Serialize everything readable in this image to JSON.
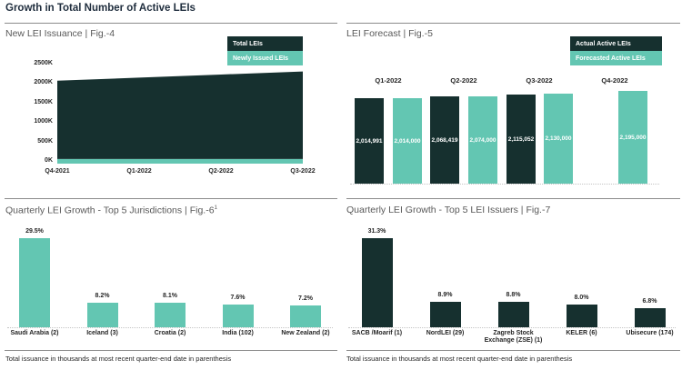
{
  "header": {
    "title": "Growth in Total Number of Active LEIs"
  },
  "colors": {
    "dark": "#16302f",
    "teal": "#63c6b2",
    "title_gray": "#595959",
    "text_dark": "#262626",
    "white": "#ffffff"
  },
  "fig4": {
    "title": "New LEI Issuance | Fig.-4",
    "legend": [
      {
        "label": "Total LEIs",
        "swatch": "dark"
      },
      {
        "label": "Newly Issued LEIs",
        "swatch": "teal"
      }
    ],
    "y_ticks": [
      "2500K",
      "2000K",
      "1500K",
      "1000K",
      "500K",
      "0K"
    ],
    "x_ticks": [
      "Q4-2021",
      "Q1-2022",
      "Q2-2022",
      "Q3-2022"
    ]
  },
  "fig5": {
    "title": "LEI Forecast | Fig.-5",
    "legend": [
      {
        "label": "Actual Active LEIs",
        "swatch": "dark"
      },
      {
        "label": "Forecasted Active LEIs",
        "swatch": "teal"
      }
    ],
    "quarters": [
      "Q1-2022",
      "Q2-2022",
      "Q3-2022",
      "Q4-2022"
    ],
    "bars": [
      {
        "label": "2,014,991",
        "value": 2014991,
        "series": "actual"
      },
      {
        "label": "2,014,000",
        "value": 2014000,
        "series": "forecast"
      },
      {
        "label": "2,068,419",
        "value": 2068419,
        "series": "actual"
      },
      {
        "label": "2,074,000",
        "value": 2074000,
        "series": "forecast"
      },
      {
        "label": "2,115,052",
        "value": 2115052,
        "series": "actual"
      },
      {
        "label": "2,130,000",
        "value": 2130000,
        "series": "forecast"
      },
      {
        "label": "2,195,000",
        "value": 2195000,
        "series": "forecast"
      }
    ]
  },
  "fig6": {
    "title_main": "Quarterly LEI Growth - Top 5 Jurisdictions | Fig.-6",
    "title_sup": "1",
    "categories": [
      "Saudi Arabia (2)",
      "Iceland (3)",
      "Croatia (2)",
      "India (102)",
      "New Zealand (2)"
    ],
    "values": [
      29.5,
      8.2,
      8.1,
      7.6,
      7.2
    ],
    "value_labels": [
      "29.5%",
      "8.2%",
      "8.1%",
      "7.6%",
      "7.2%"
    ],
    "footnote": "Total issuance in thousands at most recent quarter-end date in parenthesis"
  },
  "fig7": {
    "title": "Quarterly LEI Growth - Top 5 LEI Issuers | Fig.-7",
    "categories": [
      "SACB /Moarif (1)",
      "NordLEI (29)",
      "Zagreb Stock Exchange (ZSE) (1)",
      "KELER (6)",
      "Ubisecure (174)"
    ],
    "values": [
      31.3,
      8.9,
      8.8,
      8.0,
      6.8
    ],
    "value_labels": [
      "31.3%",
      "8.9%",
      "8.8%",
      "8.0%",
      "6.8%"
    ],
    "footnote": "Total issuance in thousands at most recent quarter-end date in parenthesis"
  },
  "chart_data": [
    {
      "type": "area",
      "title": "New LEI Issuance | Fig.-4",
      "x": [
        "Q4-2021",
        "Q1-2022",
        "Q2-2022",
        "Q3-2022"
      ],
      "series": [
        {
          "name": "Total LEIs",
          "values_thousands_estimated": [
            2060,
            2140,
            2220,
            2300
          ]
        },
        {
          "name": "Newly Issued LEIs",
          "values_thousands_estimated": [
            50,
            50,
            50,
            50
          ]
        }
      ],
      "ylim_thousands": [
        0,
        2500
      ],
      "y_tick_step_thousands": 500,
      "grid": false,
      "legend_position": "top-right"
    },
    {
      "type": "bar",
      "title": "LEI Forecast | Fig.-5",
      "categories": [
        "Q1-2022",
        "Q2-2022",
        "Q3-2022",
        "Q4-2022"
      ],
      "series": [
        {
          "name": "Actual Active LEIs",
          "values": [
            2014991,
            2068419,
            2115052,
            null
          ]
        },
        {
          "name": "Forecasted Active LEIs",
          "values": [
            2014000,
            2074000,
            2130000,
            2195000
          ]
        }
      ],
      "data_labels": true,
      "grid": false,
      "legend_position": "top-right"
    },
    {
      "type": "bar",
      "title": "Quarterly LEI Growth - Top 5 Jurisdictions | Fig.-6¹",
      "categories": [
        "Saudi Arabia (2)",
        "Iceland (3)",
        "Croatia (2)",
        "India (102)",
        "New Zealand (2)"
      ],
      "values": [
        29.5,
        8.2,
        8.1,
        7.6,
        7.2
      ],
      "unit": "percent",
      "grid": false,
      "legend_position": "none"
    },
    {
      "type": "bar",
      "title": "Quarterly LEI Growth - Top 5 LEI Issuers | Fig.-7",
      "categories": [
        "SACB /Moarif (1)",
        "NordLEI (29)",
        "Zagreb Stock Exchange (ZSE) (1)",
        "KELER (6)",
        "Ubisecure (174)"
      ],
      "values": [
        31.3,
        8.9,
        8.8,
        8.0,
        6.8
      ],
      "unit": "percent",
      "grid": false,
      "legend_position": "none"
    }
  ]
}
